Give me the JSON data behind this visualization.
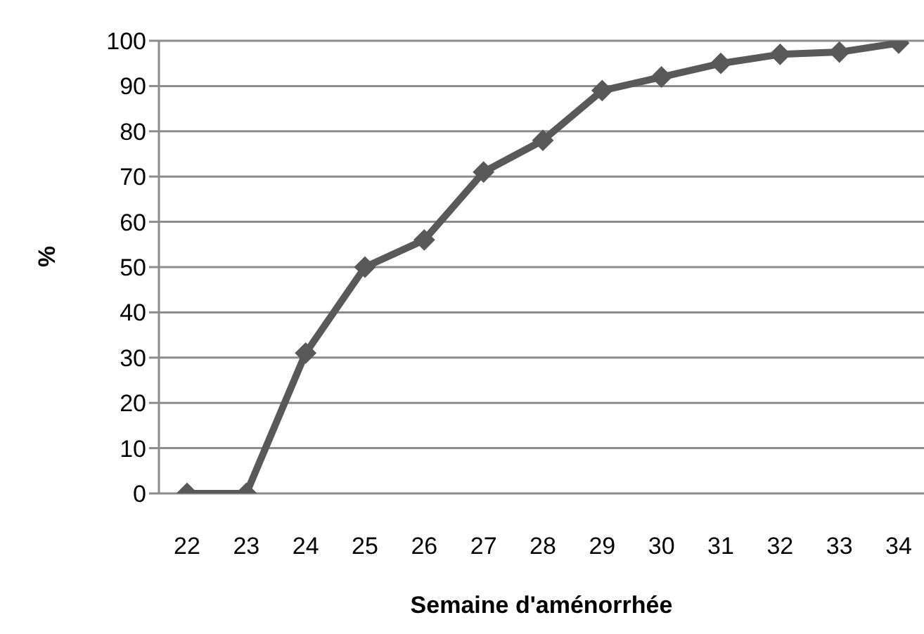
{
  "chart_data": {
    "type": "line",
    "xlabel": "Semaine d'aménorrhée",
    "ylabel": "%",
    "categories": [
      "22",
      "23",
      "24",
      "25",
      "26",
      "27",
      "28",
      "29",
      "30",
      "31",
      "32",
      "33",
      "34"
    ],
    "series": [
      {
        "color": "#595959",
        "values": [
          0,
          0,
          31,
          50,
          56,
          71,
          78,
          89,
          92,
          95,
          97,
          97.5,
          99.5
        ]
      }
    ],
    "ylim": [
      0,
      100
    ],
    "yticks": [
      0,
      10,
      20,
      30,
      40,
      50,
      60,
      70,
      80,
      90,
      100
    ],
    "grid": "y",
    "marker": "diamond",
    "line_style": "solid",
    "legend": false
  }
}
